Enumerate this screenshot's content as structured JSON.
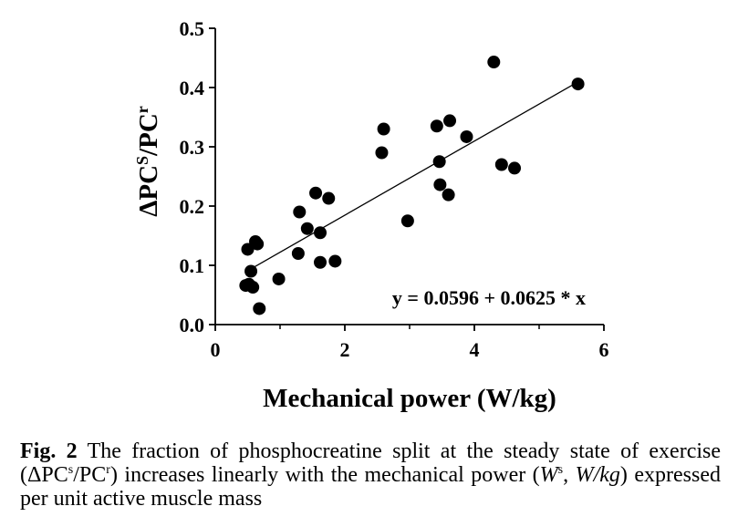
{
  "chart_data": {
    "type": "scatter",
    "x": [
      0.47,
      0.52,
      0.55,
      0.58,
      0.62,
      0.65,
      0.68,
      0.5,
      0.98,
      1.28,
      1.3,
      1.42,
      1.55,
      1.62,
      1.62,
      1.75,
      1.85,
      2.57,
      2.6,
      2.97,
      3.42,
      3.46,
      3.47,
      3.6,
      3.62,
      3.88,
      4.3,
      4.42,
      4.62,
      5.6
    ],
    "y": [
      0.066,
      0.068,
      0.09,
      0.063,
      0.14,
      0.136,
      0.027,
      0.127,
      0.077,
      0.12,
      0.19,
      0.162,
      0.222,
      0.105,
      0.155,
      0.213,
      0.107,
      0.29,
      0.33,
      0.175,
      0.335,
      0.275,
      0.236,
      0.219,
      0.344,
      0.317,
      0.443,
      0.27,
      0.264,
      0.406
    ],
    "fit_line": {
      "intercept": 0.0596,
      "slope": 0.0625,
      "x_range": [
        0.47,
        5.6
      ]
    },
    "equation_label": "y = 0.0596 + 0.0625 * x",
    "xlabel": "Mechanical power (W/kg)",
    "ylabel": {
      "prefix": "ΔPC",
      "sup1": "S",
      "middle": "/PC",
      "sup2": "r"
    },
    "xlim": [
      0,
      6
    ],
    "ylim": [
      0.0,
      0.5
    ],
    "x_ticks": [
      "0",
      "2",
      "4",
      "6"
    ],
    "y_ticks": [
      "0.0",
      "0.1",
      "0.2",
      "0.3",
      "0.4",
      "0.5"
    ],
    "grid": false,
    "marker_color": "#000000"
  },
  "caption": {
    "fig_label": "Fig. 2",
    "text1": " The fraction of phosphocreatine split at the steady state of exercise (ΔPC",
    "sup1": "s",
    "text2": "/PC",
    "sup2": "r",
    "text3": ") increases linearly with the mechanical power (",
    "w_italic": "W",
    "sup3": "s",
    "text4": ", ",
    "wkg_italic": "W/kg",
    "text5": ") expressed per unit active muscle mass"
  }
}
